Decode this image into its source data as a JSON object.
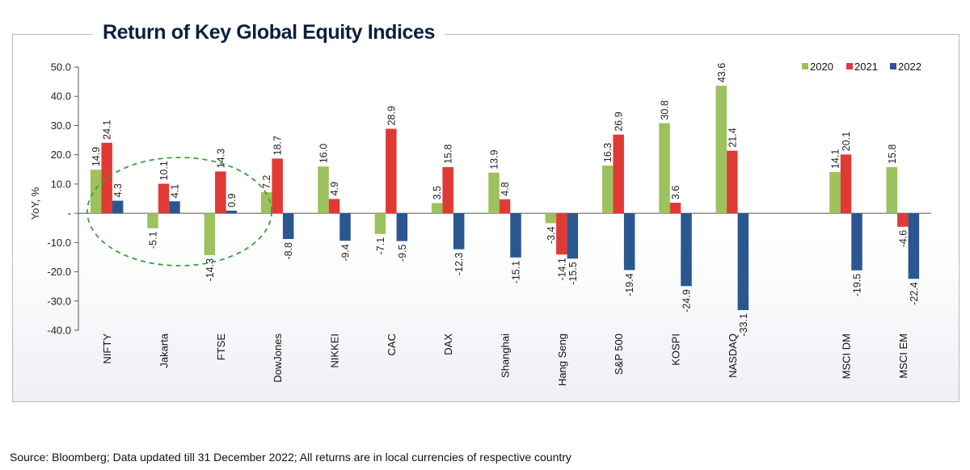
{
  "title": "Return of Key Global Equity Indices",
  "footer": "Source: Bloomberg; Data updated till 31 December 2022; All returns are in local currencies of respective country",
  "colors": {
    "2020": "#9dc15c",
    "2021": "#e03a35",
    "2022": "#2a5790",
    "axis": "#555555",
    "circle": "#3aa13a"
  },
  "chart_data": {
    "type": "bar",
    "title": "Return of Key Global Equity Indices",
    "xlabel": "",
    "ylabel": "YoY, %",
    "ylim": [
      -40,
      50
    ],
    "yticks": [
      "50.0",
      "40.0",
      "30.0",
      "20.0",
      "10.0",
      "-",
      "-10.0",
      "-20.0",
      "-30.0",
      "-40.0"
    ],
    "legend_position": "top-right",
    "categories": [
      "NIFTY",
      "Jakarta",
      "FTSE",
      "DowJones",
      "NIKKEI",
      "CAC",
      "DAX",
      "Shanghai",
      "Hang Seng",
      "S&P 500",
      "KOSPI",
      "NASDAQ",
      "",
      "MSCI DM",
      "MSCI EM"
    ],
    "series": [
      {
        "name": "2020",
        "values": [
          14.9,
          -5.1,
          -14.3,
          7.2,
          16.0,
          -7.1,
          3.5,
          13.9,
          -3.4,
          16.3,
          30.8,
          43.6,
          null,
          14.1,
          15.8
        ],
        "labels": [
          "14.9",
          "-5.1",
          "-14.3",
          "7.2",
          "16.0",
          "-7.1",
          "3.5",
          "13.9",
          "-3.4",
          "16.3",
          "30.8",
          "43.6",
          null,
          "14.1",
          "15.8"
        ]
      },
      {
        "name": "2021",
        "values": [
          24.1,
          10.1,
          14.3,
          18.7,
          4.9,
          28.9,
          15.8,
          4.8,
          -14.1,
          26.9,
          3.6,
          21.4,
          null,
          20.1,
          -4.6
        ],
        "labels": [
          "24.1",
          "10.1",
          "14.3",
          "18.7",
          "4.9",
          "28.9",
          "15.8",
          "4.8",
          "-14.1",
          "26.9",
          "3.6",
          "21.4",
          null,
          "20.1",
          "-4.6"
        ]
      },
      {
        "name": "2022",
        "values": [
          4.3,
          4.1,
          0.9,
          -8.8,
          -9.4,
          -9.5,
          -12.3,
          -15.1,
          -15.5,
          -19.4,
          -24.9,
          -33.1,
          null,
          -19.5,
          -22.4
        ],
        "labels": [
          "4.3",
          "4.1",
          "0.9",
          "-8.8",
          "-9.4",
          "-9.5",
          "-12.3",
          "-15.1",
          "-15.5",
          "-19.4",
          "-24.9",
          "-33.1",
          null,
          "-19.5",
          "-22.4"
        ]
      }
    ],
    "annotation": "dashed ellipse highlighting Jakarta and FTSE"
  }
}
